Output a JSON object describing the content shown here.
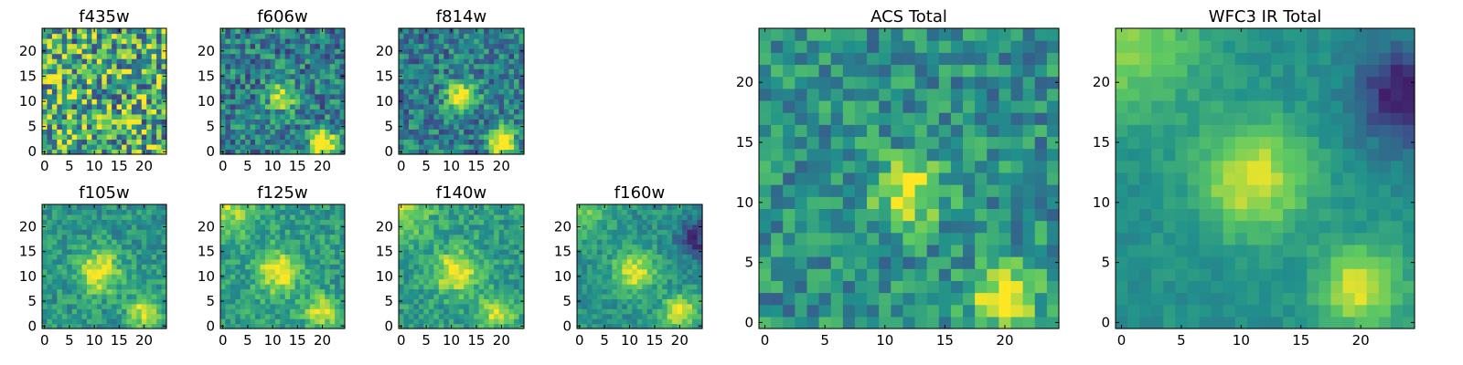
{
  "figure": {
    "colormap": "viridis",
    "colors": [
      "#440154",
      "#3b528b",
      "#21918c",
      "#5ec962",
      "#fde725"
    ]
  },
  "chart_data": [
    {
      "type": "heatmap",
      "title": "f435w",
      "xticks": [
        "0",
        "5",
        "10",
        "15",
        "20"
      ],
      "yticks": [
        "0",
        "5",
        "10",
        "15",
        "20"
      ],
      "xlim": [
        -0.5,
        24.5
      ],
      "ylim": [
        -0.5,
        24.5
      ],
      "grid_size": 25,
      "sources": [],
      "noise": 0.85,
      "base": 0.62
    },
    {
      "type": "heatmap",
      "title": "f606w",
      "xticks": [
        "0",
        "5",
        "10",
        "15",
        "20"
      ],
      "yticks": [
        "0",
        "5",
        "10",
        "15",
        "20"
      ],
      "xlim": [
        -0.5,
        24.5
      ],
      "ylim": [
        -0.5,
        24.5
      ],
      "grid_size": 25,
      "sources": [
        {
          "x": 12,
          "y": 11,
          "amp": 0.5,
          "sigma": 2.0
        },
        {
          "x": 20,
          "y": 2,
          "amp": 0.75,
          "sigma": 1.8
        }
      ],
      "noise": 0.5,
      "base": 0.42
    },
    {
      "type": "heatmap",
      "title": "f814w",
      "xticks": [
        "0",
        "5",
        "10",
        "15",
        "20"
      ],
      "yticks": [
        "0",
        "5",
        "10",
        "15",
        "20"
      ],
      "xlim": [
        -0.5,
        24.5
      ],
      "ylim": [
        -0.5,
        24.5
      ],
      "grid_size": 25,
      "sources": [
        {
          "x": 12,
          "y": 11,
          "amp": 0.65,
          "sigma": 2.0
        },
        {
          "x": 20,
          "y": 2,
          "amp": 0.75,
          "sigma": 1.8
        }
      ],
      "noise": 0.45,
      "base": 0.42
    },
    {
      "type": "heatmap",
      "title": "f105w",
      "xticks": [
        "0",
        "5",
        "10",
        "15",
        "20"
      ],
      "yticks": [
        "0",
        "5",
        "10",
        "15",
        "20"
      ],
      "xlim": [
        -0.5,
        24.5
      ],
      "ylim": [
        -0.5,
        24.5
      ],
      "grid_size": 25,
      "sources": [
        {
          "x": 11,
          "y": 11,
          "amp": 0.5,
          "sigma": 3.0
        },
        {
          "x": 20,
          "y": 3,
          "amp": 0.45,
          "sigma": 2.2
        }
      ],
      "noise": 0.3,
      "base": 0.52
    },
    {
      "type": "heatmap",
      "title": "f125w",
      "xticks": [
        "0",
        "5",
        "10",
        "15",
        "20"
      ],
      "yticks": [
        "0",
        "5",
        "10",
        "15",
        "20"
      ],
      "xlim": [
        -0.5,
        24.5
      ],
      "ylim": [
        -0.5,
        24.5
      ],
      "grid_size": 25,
      "sources": [
        {
          "x": 11,
          "y": 11,
          "amp": 0.45,
          "sigma": 3.0
        },
        {
          "x": 20,
          "y": 3,
          "amp": 0.45,
          "sigma": 2.2
        },
        {
          "x": 0,
          "y": 24,
          "amp": 0.35,
          "sigma": 4.0
        }
      ],
      "noise": 0.3,
      "base": 0.55
    },
    {
      "type": "heatmap",
      "title": "f140w",
      "xticks": [
        "0",
        "5",
        "10",
        "15",
        "20"
      ],
      "yticks": [
        "0",
        "5",
        "10",
        "15",
        "20"
      ],
      "xlim": [
        -0.5,
        24.5
      ],
      "ylim": [
        -0.5,
        24.5
      ],
      "grid_size": 25,
      "sources": [
        {
          "x": 11,
          "y": 11,
          "amp": 0.45,
          "sigma": 3.0
        },
        {
          "x": 19,
          "y": 3,
          "amp": 0.45,
          "sigma": 2.2
        },
        {
          "x": 0,
          "y": 24,
          "amp": 0.35,
          "sigma": 4.0
        }
      ],
      "noise": 0.3,
      "base": 0.55
    },
    {
      "type": "heatmap",
      "title": "f160w",
      "xticks": [
        "0",
        "5",
        "10",
        "15",
        "20"
      ],
      "yticks": [
        "0",
        "5",
        "10",
        "15",
        "20"
      ],
      "xlim": [
        -0.5,
        24.5
      ],
      "ylim": [
        -0.5,
        24.5
      ],
      "grid_size": 25,
      "sources": [
        {
          "x": 11,
          "y": 11,
          "amp": 0.45,
          "sigma": 3.0
        },
        {
          "x": 20,
          "y": 3,
          "amp": 0.55,
          "sigma": 2.2
        },
        {
          "x": 0,
          "y": 24,
          "amp": 0.3,
          "sigma": 4.0
        },
        {
          "x": 24,
          "y": 18,
          "amp": -0.35,
          "sigma": 3.0
        }
      ],
      "noise": 0.25,
      "base": 0.5
    },
    {
      "type": "heatmap",
      "title": "ACS Total",
      "xticks": [
        "0",
        "5",
        "10",
        "15",
        "20"
      ],
      "yticks": [
        "0",
        "5",
        "10",
        "15",
        "20"
      ],
      "xlim": [
        -0.5,
        24.5
      ],
      "ylim": [
        -0.5,
        24.5
      ],
      "grid_size": 25,
      "sources": [
        {
          "x": 12,
          "y": 11,
          "amp": 0.45,
          "sigma": 2.0
        },
        {
          "x": 20,
          "y": 2,
          "amp": 0.6,
          "sigma": 1.8
        }
      ],
      "noise": 0.4,
      "base": 0.5
    },
    {
      "type": "heatmap",
      "title": "WFC3 IR Total",
      "xticks": [
        "0",
        "5",
        "10",
        "15",
        "20"
      ],
      "yticks": [
        "0",
        "5",
        "10",
        "15",
        "20"
      ],
      "xlim": [
        -0.5,
        24.5
      ],
      "ylim": [
        -0.5,
        24.5
      ],
      "grid_size": 25,
      "sources": [
        {
          "x": 11,
          "y": 12,
          "amp": 0.45,
          "sigma": 3.2
        },
        {
          "x": 20,
          "y": 3,
          "amp": 0.45,
          "sigma": 2.4
        },
        {
          "x": 0,
          "y": 24,
          "amp": 0.35,
          "sigma": 4.5
        },
        {
          "x": 24,
          "y": 19,
          "amp": -0.45,
          "sigma": 3.0
        }
      ],
      "noise": 0.12,
      "base": 0.5
    }
  ]
}
